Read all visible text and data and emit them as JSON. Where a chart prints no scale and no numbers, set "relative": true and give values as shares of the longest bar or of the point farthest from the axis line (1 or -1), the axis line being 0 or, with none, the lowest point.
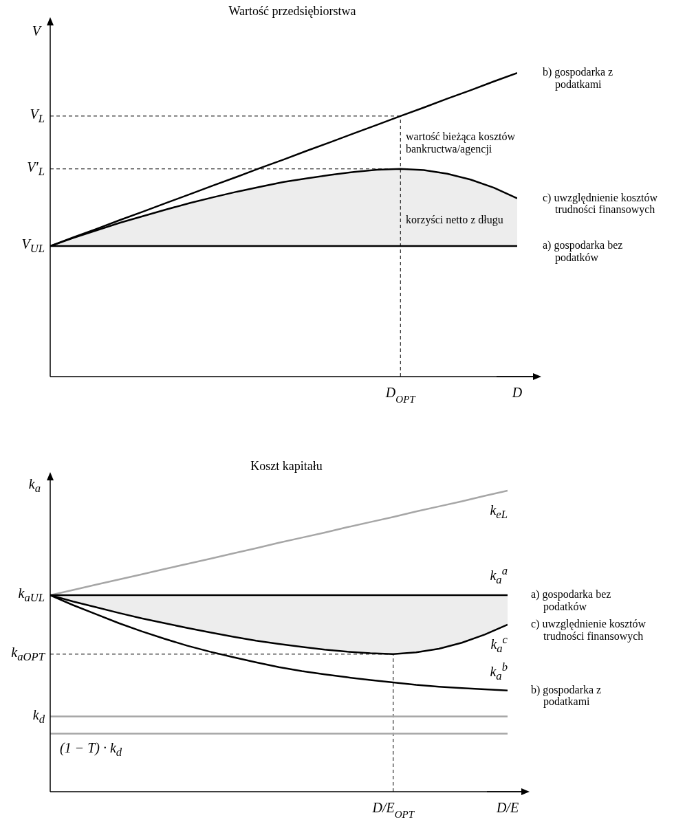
{
  "chart_data": [
    {
      "type": "line",
      "relative": true,
      "title": "Wartość przedsiębiorstwa",
      "ylabel": "V",
      "categories": [
        null,
        null,
        null,
        null,
        null,
        null,
        null,
        null,
        null,
        null,
        null,
        null,
        null,
        null,
        null,
        "D$_{OPT}$",
        null,
        null,
        null,
        null,
        "D"
      ],
      "ref_lines": [
        {
          "axis": "y",
          "value": 0.858,
          "label": "V$_{L}$",
          "color": "#000000",
          "line_style": "dashed"
        },
        {
          "axis": "y",
          "value": 0.684,
          "label": "V′$_{L}$",
          "color": "#000000",
          "line_style": "dashed"
        },
        {
          "axis": "x",
          "value": "D$_{OPT}$",
          "color": "#000000",
          "line_style": "dashed"
        }
      ],
      "annotations": [
        "V$_{UL}$",
        "wartość bieżąca kosztów bankructwa/agencji",
        "korzyści netto z długu"
      ],
      "series": [
        {
          "name": "b) gospodarka z podatkami",
          "color": "#000000",
          "values": [
            0.43,
            0.459,
            0.487,
            0.516,
            0.544,
            0.573,
            0.601,
            0.63,
            0.658,
            0.687,
            0.715,
            0.744,
            0.772,
            0.801,
            0.829,
            0.858,
            0.886,
            0.915,
            0.943,
            0.972,
            1
          ]
        },
        {
          "name": "c) uwzględnienie kosztów trudności finansowych",
          "color": "#000000",
          "values": [
            0.43,
            0.457,
            0.482,
            0.507,
            0.529,
            0.551,
            0.572,
            0.591,
            0.609,
            0.625,
            0.641,
            0.653,
            0.664,
            0.674,
            0.681,
            0.684,
            0.68,
            0.668,
            0.649,
            0.622,
            0.587
          ],
          "lower": [
            0.43,
            0.43,
            0.43,
            0.43,
            0.43,
            0.43,
            0.43,
            0.43,
            0.43,
            0.43,
            0.43,
            0.43,
            0.43,
            0.43,
            0.43,
            0.43,
            0.43,
            0.43,
            0.43,
            0.43,
            0.43
          ],
          "upper": [
            0.43,
            0.457,
            0.482,
            0.507,
            0.529,
            0.551,
            0.572,
            0.591,
            0.609,
            0.625,
            0.641,
            0.653,
            0.664,
            0.674,
            0.681,
            0.684,
            0.68,
            0.668,
            0.649,
            0.622,
            0.587
          ]
        },
        {
          "name": "a) gospodarka bez podatków",
          "color": "#000000",
          "values": [
            0.43,
            0.43,
            0.43,
            0.43,
            0.43,
            0.43,
            0.43,
            0.43,
            0.43,
            0.43,
            0.43,
            0.43,
            0.43,
            0.43,
            0.43,
            0.43,
            0.43,
            0.43,
            0.43,
            0.43,
            0.43
          ]
        }
      ]
    },
    {
      "type": "line",
      "relative": true,
      "title": "Koszt kapitału",
      "ylabel": "k$_{a}$",
      "categories": [
        null,
        null,
        null,
        null,
        null,
        null,
        null,
        null,
        null,
        null,
        null,
        null,
        null,
        null,
        null,
        "D/E$_{OPT}$",
        null,
        null,
        null,
        null,
        "D/E"
      ],
      "ref_lines": [
        {
          "axis": "y",
          "value": 0.457,
          "label": "k$_{aOPT}$",
          "color": "#000000",
          "line_style": "dashed"
        },
        {
          "axis": "x",
          "value": "D/E$_{OPT}$",
          "color": "#000000",
          "line_style": "dashed"
        }
      ],
      "annotations": [
        "k$_{aUL}$",
        "k$_{d}$",
        "(1 − T) · k$_{d}$",
        "k$_{eL}$",
        "k$_{a}$$^{a}$",
        "k$_{a}$$^{c}$",
        "k$_{a}$$^{b}$"
      ],
      "series": [
        {
          "color": "#a6a6a6",
          "values": [
            0.653,
            0.67,
            0.688,
            0.705,
            0.722,
            0.74,
            0.757,
            0.774,
            0.792,
            0.809,
            0.827,
            0.844,
            0.861,
            0.879,
            0.896,
            0.913,
            0.931,
            0.948,
            0.965,
            0.983,
            1
          ]
        },
        {
          "name": "a) gospodarka bez podatków",
          "color": "#000000",
          "values": [
            0.653,
            0.653,
            0.653,
            0.653,
            0.653,
            0.653,
            0.653,
            0.653,
            0.653,
            0.653,
            0.653,
            0.653,
            0.653,
            0.653,
            0.653,
            0.653,
            0.653,
            0.653,
            0.653,
            0.653,
            0.653
          ]
        },
        {
          "name": "c) uwzględnienie kosztów trudności finansowych",
          "color": "#000000",
          "values": [
            0.653,
            0.632,
            0.613,
            0.594,
            0.576,
            0.56,
            0.544,
            0.529,
            0.515,
            0.502,
            0.491,
            0.481,
            0.472,
            0.465,
            0.46,
            0.457,
            0.463,
            0.475,
            0.495,
            0.522,
            0.555
          ],
          "lower": [
            0.653,
            0.632,
            0.613,
            0.594,
            0.576,
            0.56,
            0.544,
            0.529,
            0.515,
            0.502,
            0.491,
            0.481,
            0.472,
            0.465,
            0.46,
            0.457,
            0.463,
            0.475,
            0.495,
            0.522,
            0.555
          ],
          "upper": [
            0.653,
            0.653,
            0.653,
            0.653,
            0.653,
            0.653,
            0.653,
            0.653,
            0.653,
            0.653,
            0.653,
            0.653,
            0.653,
            0.653,
            0.653,
            0.653,
            0.653,
            0.653,
            0.653,
            0.653,
            0.653
          ]
        },
        {
          "name": "b) gospodarka z podatkami",
          "color": "#000000",
          "values": [
            0.653,
            0.62,
            0.59,
            0.56,
            0.533,
            0.508,
            0.485,
            0.465,
            0.447,
            0.43,
            0.414,
            0.401,
            0.39,
            0.38,
            0.371,
            0.363,
            0.355,
            0.349,
            0.344,
            0.34,
            0.336
          ]
        },
        {
          "color": "#a6a6a6",
          "values": [
            0.25,
            0.25,
            0.25,
            0.25,
            0.25,
            0.25,
            0.25,
            0.25,
            0.25,
            0.25,
            0.25,
            0.25,
            0.25,
            0.25,
            0.25,
            0.25,
            0.25,
            0.25,
            0.25,
            0.25,
            0.25
          ]
        },
        {
          "color": "#a6a6a6",
          "values": [
            0.193,
            0.193,
            0.193,
            0.193,
            0.193,
            0.193,
            0.193,
            0.193,
            0.193,
            0.193,
            0.193,
            0.193,
            0.193,
            0.193,
            0.193,
            0.193,
            0.193,
            0.193,
            0.193,
            0.193,
            0.193
          ]
        }
      ]
    }
  ]
}
